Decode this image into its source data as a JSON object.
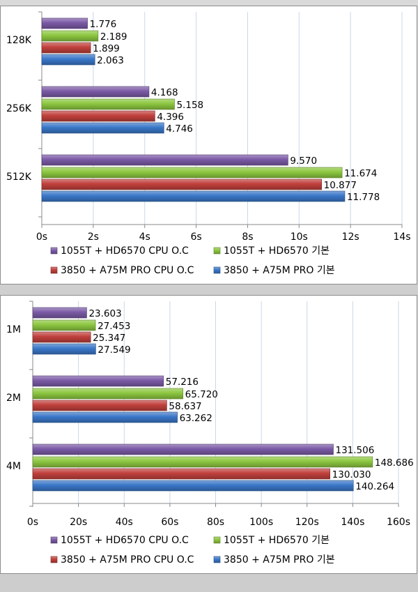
{
  "colors": {
    "purple": "#7b5aa6",
    "green": "#8cc63f",
    "red": "#c0403c",
    "blue": "#3a77c8",
    "grid": "#c9d7ea"
  },
  "chart_data": [
    {
      "type": "bar",
      "orientation": "horizontal",
      "categories": [
        "128K",
        "256K",
        "512K"
      ],
      "xlim": [
        0,
        14
      ],
      "xticks": [
        "0s",
        "2s",
        "4s",
        "6s",
        "8s",
        "10s",
        "12s",
        "14s"
      ],
      "tick_values": [
        0,
        2,
        4,
        6,
        8,
        10,
        12,
        14
      ],
      "grid": true,
      "legend_position": "bottom",
      "series": [
        {
          "name": "1055T + HD6570 CPU O.C",
          "color": "purple",
          "values": [
            1.776,
            4.168,
            9.57
          ],
          "labels": [
            "1.776",
            "4.168",
            "9.570"
          ]
        },
        {
          "name": "1055T + HD6570 기본",
          "color": "green",
          "values": [
            2.189,
            5.158,
            11.674
          ],
          "labels": [
            "2.189",
            "5.158",
            "11.674"
          ]
        },
        {
          "name": "3850 + A75M PRO CPU O.C",
          "color": "red",
          "values": [
            1.899,
            4.396,
            10.877
          ],
          "labels": [
            "1.899",
            "4.396",
            "10.877"
          ]
        },
        {
          "name": "3850 + A75M PRO 기본",
          "color": "blue",
          "values": [
            2.063,
            4.746,
            11.778
          ],
          "labels": [
            "2.063",
            "4.746",
            "11.778"
          ]
        }
      ]
    },
    {
      "type": "bar",
      "orientation": "horizontal",
      "categories": [
        "1M",
        "2M",
        "4M"
      ],
      "xlim": [
        0,
        160
      ],
      "xticks": [
        "0s",
        "20s",
        "40s",
        "60s",
        "80s",
        "100s",
        "120s",
        "140s",
        "160s"
      ],
      "tick_values": [
        0,
        20,
        40,
        60,
        80,
        100,
        120,
        140,
        160
      ],
      "grid": true,
      "legend_position": "bottom",
      "series": [
        {
          "name": "1055T + HD6570 CPU O.C",
          "color": "purple",
          "values": [
            23.603,
            57.216,
            131.506
          ],
          "labels": [
            "23.603",
            "57.216",
            "131.506"
          ]
        },
        {
          "name": "1055T + HD6570 기본",
          "color": "green",
          "values": [
            27.453,
            65.72,
            148.686
          ],
          "labels": [
            "27.453",
            "65.720",
            "148.686"
          ]
        },
        {
          "name": "3850 + A75M PRO CPU O.C",
          "color": "red",
          "values": [
            25.347,
            58.637,
            130.03
          ],
          "labels": [
            "25.347",
            "58.637",
            "130.030"
          ]
        },
        {
          "name": "3850 + A75M PRO 기본",
          "color": "blue",
          "values": [
            27.549,
            63.262,
            140.264
          ],
          "labels": [
            "27.549",
            "63.262",
            "140.264"
          ]
        }
      ]
    }
  ]
}
